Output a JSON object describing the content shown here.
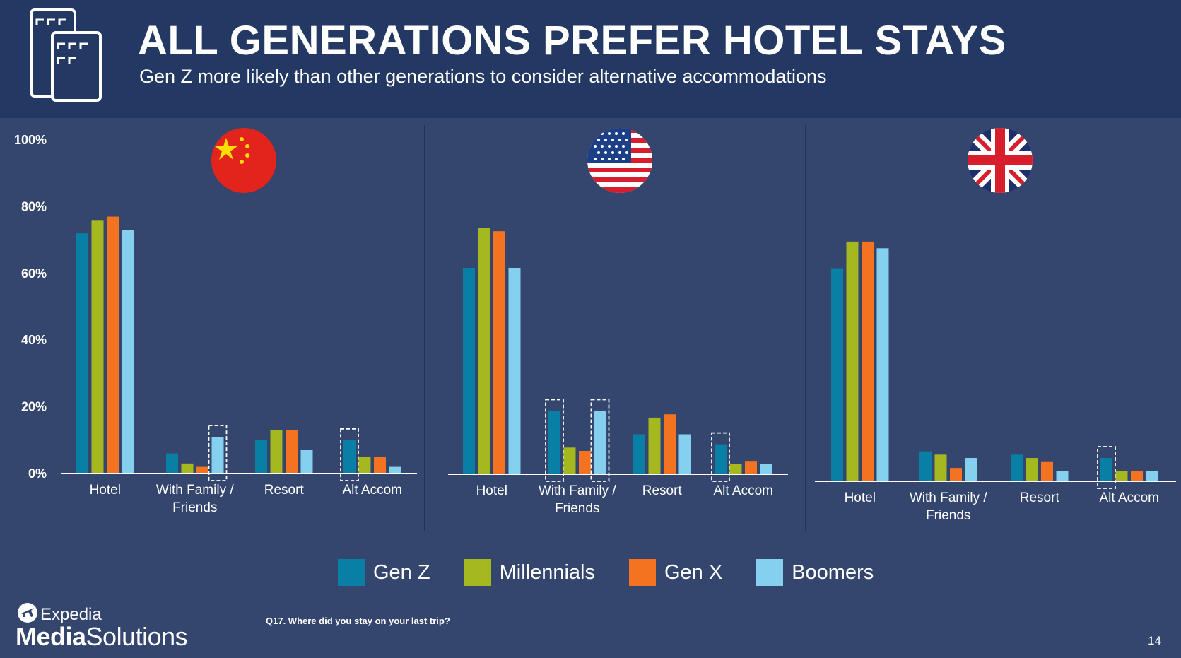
{
  "header": {
    "title": "ALL GENERATIONS PREFER HOTEL STAYS",
    "subtitle": "Gen Z more likely than other generations to consider alternative accommodations"
  },
  "icons": {
    "header": "hotel-buildings-icon",
    "flags": [
      "china-flag-icon",
      "usa-flag-icon",
      "uk-flag-icon"
    ],
    "logo": "expedia-plane-icon"
  },
  "colors": {
    "background": "#34466e",
    "header_background": "#233862",
    "gen_z": "#0a7fa6",
    "millennials": "#a6b81f",
    "gen_x": "#f47320",
    "boomers": "#84d0ee"
  },
  "chart_data": [
    {
      "type": "bar",
      "panel": "China",
      "categories": [
        "Hotel",
        "With Family / Friends",
        "Resort",
        "Alt Accom"
      ],
      "series": [
        {
          "name": "Gen Z",
          "values": [
            72,
            6,
            10,
            10
          ]
        },
        {
          "name": "Millennials",
          "values": [
            76,
            3,
            13,
            5
          ]
        },
        {
          "name": "Gen X",
          "values": [
            77,
            2,
            13,
            5
          ]
        },
        {
          "name": "Boomers",
          "values": [
            73,
            11,
            7,
            2
          ]
        }
      ],
      "ylim": [
        0,
        100
      ],
      "ytick_labels": [
        "0%",
        "20%",
        "40%",
        "60%",
        "80%",
        "100%"
      ],
      "highlighted": [
        {
          "category": "With Family / Friends",
          "series": "Boomers"
        },
        {
          "category": "Alt Accom",
          "series": "Gen Z"
        }
      ]
    },
    {
      "type": "bar",
      "panel": "United States",
      "categories": [
        "Hotel",
        "With Family / Friends",
        "Resort",
        "Alt Accom"
      ],
      "series": [
        {
          "name": "Gen Z",
          "values": [
            62,
            19,
            12,
            9
          ]
        },
        {
          "name": "Millennials",
          "values": [
            74,
            8,
            17,
            3
          ]
        },
        {
          "name": "Gen X",
          "values": [
            73,
            7,
            18,
            4
          ]
        },
        {
          "name": "Boomers",
          "values": [
            62,
            19,
            12,
            3
          ]
        }
      ],
      "ylim": [
        0,
        100
      ],
      "highlighted": [
        {
          "category": "With Family / Friends",
          "series": "Gen Z"
        },
        {
          "category": "With Family / Friends",
          "series": "Boomers"
        },
        {
          "category": "Alt Accom",
          "series": "Gen Z"
        }
      ]
    },
    {
      "type": "bar",
      "panel": "United Kingdom",
      "categories": [
        "Hotel",
        "With Family / Friends",
        "Resort",
        "Alt Accom"
      ],
      "series": [
        {
          "name": "Gen Z",
          "values": [
            64,
            9,
            8,
            7
          ]
        },
        {
          "name": "Millennials",
          "values": [
            72,
            8,
            7,
            3
          ]
        },
        {
          "name": "Gen X",
          "values": [
            72,
            4,
            6,
            3
          ]
        },
        {
          "name": "Boomers",
          "values": [
            70,
            7,
            3,
            3
          ]
        }
      ],
      "ylim": [
        0,
        100
      ],
      "highlighted": [
        {
          "category": "Alt Accom",
          "series": "Gen Z"
        }
      ]
    }
  ],
  "legend": {
    "placement": "bottom-center",
    "items": [
      "Gen Z",
      "Millennials",
      "Gen X",
      "Boomers"
    ]
  },
  "footnote": "Q17. Where did you stay on your last trip?",
  "page_number": "14",
  "logo": {
    "brand": "Expedia",
    "product_bold": "Media",
    "product_regular": "Solutions"
  }
}
